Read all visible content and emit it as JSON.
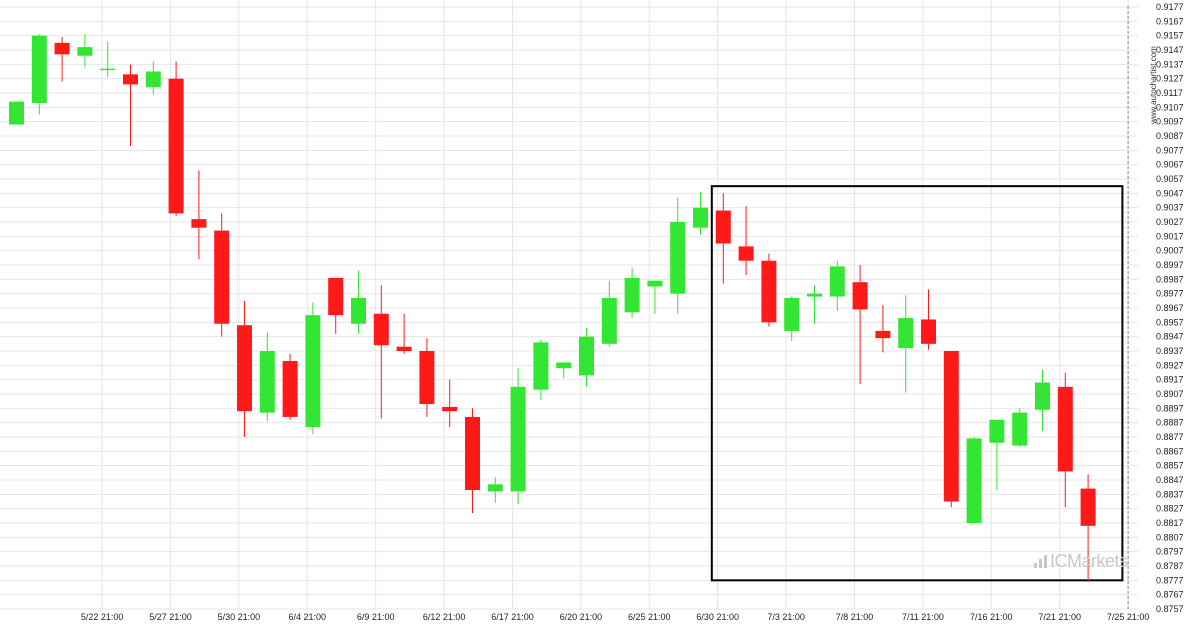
{
  "chart_data": {
    "type": "candlestick",
    "ylim": [
      0.8757,
      0.9177
    ],
    "y_ticks": [
      "0.9177",
      "0.9167",
      "0.9157",
      "0.9147",
      "0.9137",
      "0.9127",
      "0.9117",
      "0.9107",
      "0.9097",
      "0.9087",
      "0.9077",
      "0.9067",
      "0.9057",
      "0.9047",
      "0.9037",
      "0.9027",
      "0.9017",
      "0.9007",
      "0.8997",
      "0.8987",
      "0.8977",
      "0.8967",
      "0.8957",
      "0.8947",
      "0.8937",
      "0.8927",
      "0.8917",
      "0.8907",
      "0.8897",
      "0.8887",
      "0.8877",
      "0.8867",
      "0.8857",
      "0.8847",
      "0.8837",
      "0.8827",
      "0.8817",
      "0.8807",
      "0.8797",
      "0.8787",
      "0.8777",
      "0.8767",
      "0.8757"
    ],
    "x_ticks": [
      {
        "label": "5/22 21:00",
        "index": 2
      },
      {
        "label": "5/27 21:00",
        "index": 5
      },
      {
        "label": "5/30 21:00",
        "index": 8
      },
      {
        "label": "6/4 21:00",
        "index": 11
      },
      {
        "label": "6/9 21:00",
        "index": 14
      },
      {
        "label": "6/12 21:00",
        "index": 17
      },
      {
        "label": "6/17 21:00",
        "index": 20
      },
      {
        "label": "6/20 21:00",
        "index": 23
      },
      {
        "label": "6/25 21:00",
        "index": 26
      },
      {
        "label": "6/30 21:00",
        "index": 29
      },
      {
        "label": "7/3 21:00",
        "index": 32
      },
      {
        "label": "7/8 21:00",
        "index": 35
      },
      {
        "label": "7/11 21:00",
        "index": 38
      },
      {
        "label": "7/16 21:00",
        "index": 41
      },
      {
        "label": "7/21 21:00",
        "index": 44
      },
      {
        "label": "7/25 21:00",
        "index": 47
      }
    ],
    "candles": [
      {
        "o": 0.9095,
        "h": 0.9111,
        "l": 0.9095,
        "c": 0.9111
      },
      {
        "o": 0.911,
        "h": 0.9158,
        "l": 0.9102,
        "c": 0.9157
      },
      {
        "o": 0.9152,
        "h": 0.9156,
        "l": 0.9125,
        "c": 0.9144
      },
      {
        "o": 0.9143,
        "h": 0.9158,
        "l": 0.9135,
        "c": 0.9149
      },
      {
        "o": 0.9133,
        "h": 0.9153,
        "l": 0.9128,
        "c": 0.9134
      },
      {
        "o": 0.913,
        "h": 0.9137,
        "l": 0.908,
        "c": 0.9123
      },
      {
        "o": 0.9121,
        "h": 0.9139,
        "l": 0.9116,
        "c": 0.9132
      },
      {
        "o": 0.9127,
        "h": 0.9139,
        "l": 0.9031,
        "c": 0.9033
      },
      {
        "o": 0.9029,
        "h": 0.9063,
        "l": 0.9001,
        "c": 0.9023
      },
      {
        "o": 0.9021,
        "h": 0.9033,
        "l": 0.8947,
        "c": 0.8956
      },
      {
        "o": 0.8955,
        "h": 0.8972,
        "l": 0.8877,
        "c": 0.8895
      },
      {
        "o": 0.8894,
        "h": 0.895,
        "l": 0.8888,
        "c": 0.8937
      },
      {
        "o": 0.893,
        "h": 0.8935,
        "l": 0.8889,
        "c": 0.8891
      },
      {
        "o": 0.8884,
        "h": 0.8971,
        "l": 0.8879,
        "c": 0.8962
      },
      {
        "o": 0.8988,
        "h": 0.8988,
        "l": 0.8949,
        "c": 0.8962
      },
      {
        "o": 0.8956,
        "h": 0.8993,
        "l": 0.8949,
        "c": 0.8974
      },
      {
        "o": 0.8963,
        "h": 0.8983,
        "l": 0.889,
        "c": 0.8941
      },
      {
        "o": 0.894,
        "h": 0.8963,
        "l": 0.8935,
        "c": 0.8937
      },
      {
        "o": 0.8937,
        "h": 0.8946,
        "l": 0.8891,
        "c": 0.89
      },
      {
        "o": 0.8898,
        "h": 0.8917,
        "l": 0.8884,
        "c": 0.8895
      },
      {
        "o": 0.8891,
        "h": 0.8897,
        "l": 0.8824,
        "c": 0.884
      },
      {
        "o": 0.8839,
        "h": 0.8849,
        "l": 0.8831,
        "c": 0.8844
      },
      {
        "o": 0.8839,
        "h": 0.8925,
        "l": 0.883,
        "c": 0.8912
      },
      {
        "o": 0.891,
        "h": 0.8945,
        "l": 0.8903,
        "c": 0.8943
      },
      {
        "o": 0.8925,
        "h": 0.8929,
        "l": 0.8918,
        "c": 0.8929
      },
      {
        "o": 0.892,
        "h": 0.8953,
        "l": 0.8912,
        "c": 0.8947
      },
      {
        "o": 0.8942,
        "h": 0.8986,
        "l": 0.894,
        "c": 0.8974
      },
      {
        "o": 0.8964,
        "h": 0.8995,
        "l": 0.896,
        "c": 0.8988
      },
      {
        "o": 0.8982,
        "h": 0.8984,
        "l": 0.8963,
        "c": 0.8986
      },
      {
        "o": 0.8977,
        "h": 0.9044,
        "l": 0.8963,
        "c": 0.9027
      },
      {
        "o": 0.9023,
        "h": 0.9048,
        "l": 0.9018,
        "c": 0.9037
      },
      {
        "o": 0.9035,
        "h": 0.9047,
        "l": 0.8984,
        "c": 0.9012
      },
      {
        "o": 0.901,
        "h": 0.9038,
        "l": 0.899,
        "c": 0.9
      },
      {
        "o": 0.9,
        "h": 0.9005,
        "l": 0.8954,
        "c": 0.8957
      },
      {
        "o": 0.8951,
        "h": 0.8975,
        "l": 0.8944,
        "c": 0.8974
      },
      {
        "o": 0.8975,
        "h": 0.8983,
        "l": 0.8956,
        "c": 0.8977
      },
      {
        "o": 0.8975,
        "h": 0.9,
        "l": 0.8965,
        "c": 0.8996
      },
      {
        "o": 0.8985,
        "h": 0.8997,
        "l": 0.8914,
        "c": 0.8966
      },
      {
        "o": 0.8951,
        "h": 0.8969,
        "l": 0.8936,
        "c": 0.8946
      },
      {
        "o": 0.8939,
        "h": 0.8976,
        "l": 0.8908,
        "c": 0.896
      },
      {
        "o": 0.8959,
        "h": 0.898,
        "l": 0.8938,
        "c": 0.8942
      },
      {
        "o": 0.8937,
        "h": 0.8937,
        "l": 0.8828,
        "c": 0.8832
      },
      {
        "o": 0.8817,
        "h": 0.8877,
        "l": 0.8817,
        "c": 0.8876
      },
      {
        "o": 0.8873,
        "h": 0.8889,
        "l": 0.884,
        "c": 0.8889
      },
      {
        "o": 0.8871,
        "h": 0.8897,
        "l": 0.887,
        "c": 0.8894
      },
      {
        "o": 0.8896,
        "h": 0.8924,
        "l": 0.8881,
        "c": 0.8915
      },
      {
        "o": 0.8912,
        "h": 0.8922,
        "l": 0.8828,
        "c": 0.8853
      },
      {
        "o": 0.8841,
        "h": 0.8851,
        "l": 0.8776,
        "c": 0.8815
      }
    ],
    "highlight_box": {
      "from_index": 31,
      "to_index": 48,
      "y_top": 0.9052,
      "y_bottom": 0.8777
    },
    "current_line_index": 47,
    "colors": {
      "up": "#33e633",
      "down": "#ff1a1a",
      "wick_up": "#33e633",
      "wick_down": "#ff1a1a",
      "grid": "#e6e6e6",
      "box": "#000000"
    },
    "grid": true
  },
  "watermark_text": "www.autochartist.com",
  "brand_text": "ICMarkets"
}
